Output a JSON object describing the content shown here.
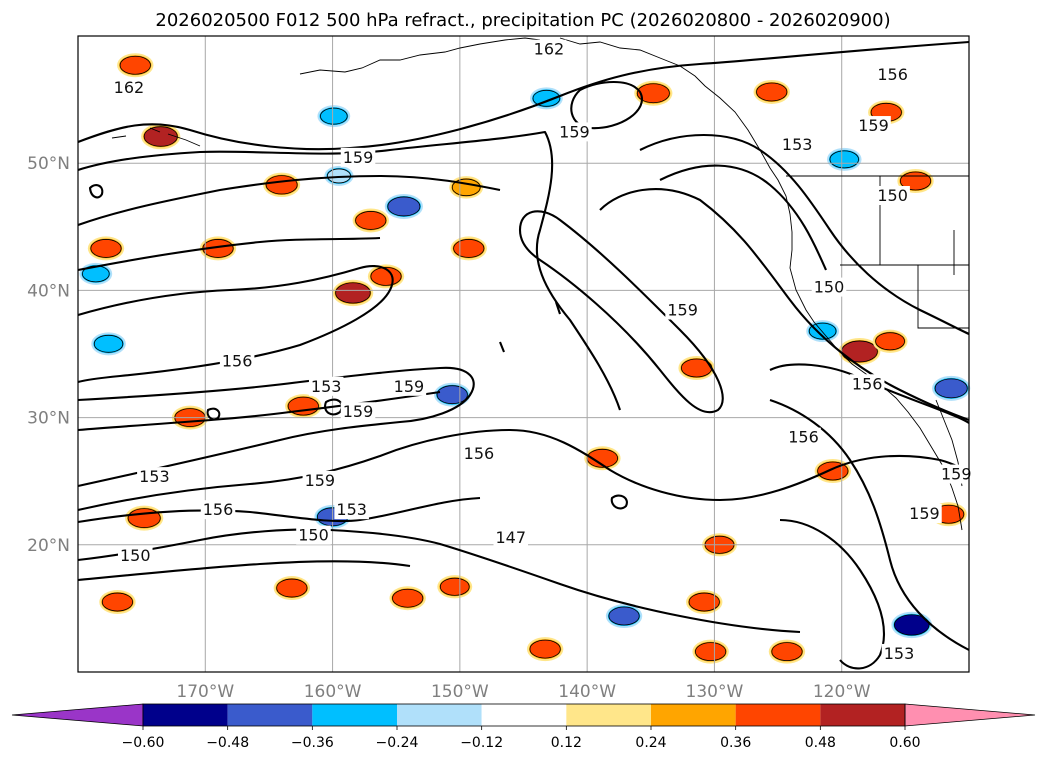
{
  "chart_data": {
    "type": "heatmap",
    "title": "2026020500 F012 500 hPa refract., precipitation PC (2026020800 - 2026020900)",
    "lat_ticks": [
      {
        "value": 50,
        "label": "50°N"
      },
      {
        "value": 40,
        "label": "40°N"
      },
      {
        "value": 30,
        "label": "30°N"
      },
      {
        "value": 20,
        "label": "20°N"
      }
    ],
    "lon_ticks": [
      {
        "value": -170,
        "label": "170°W"
      },
      {
        "value": -160,
        "label": "160°W"
      },
      {
        "value": -150,
        "label": "150°W"
      },
      {
        "value": -140,
        "label": "140°W"
      },
      {
        "value": -130,
        "label": "130°W"
      },
      {
        "value": -120,
        "label": "120°W"
      }
    ],
    "lon_range": [
      -180,
      -110
    ],
    "lat_range": [
      10,
      60
    ],
    "grid": true,
    "colorbar": {
      "extend": "both",
      "levels": [
        -0.6,
        -0.48,
        -0.36,
        -0.24,
        -0.12,
        0.12,
        0.24,
        0.36,
        0.48,
        0.6
      ],
      "tick_labels": [
        "−0.60",
        "−0.48",
        "−0.36",
        "−0.24",
        "−0.12",
        "0.12",
        "0.24",
        "0.36",
        "0.48",
        "0.60"
      ],
      "colors": [
        "#9a35c8",
        "#00008b",
        "#3a5bcc",
        "#00bfff",
        "#b0e0fa",
        "#ffffff",
        "#ffe68a",
        "#ffa500",
        "#ff4500",
        "#b22222",
        "#ff8fb0"
      ]
    },
    "contour_labels": [
      {
        "text": "162",
        "lon": -143,
        "lat": 59
      },
      {
        "text": "162",
        "lon": -176,
        "lat": 56
      },
      {
        "text": "156",
        "lon": -116,
        "lat": 57
      },
      {
        "text": "159",
        "lon": -141,
        "lat": 52.5
      },
      {
        "text": "159",
        "lon": -117.5,
        "lat": 53
      },
      {
        "text": "153",
        "lon": -123.5,
        "lat": 51.5
      },
      {
        "text": "159",
        "lon": -158,
        "lat": 50.5
      },
      {
        "text": "150",
        "lon": -116,
        "lat": 47.5
      },
      {
        "text": "150",
        "lon": -121,
        "lat": 40.3
      },
      {
        "text": "159",
        "lon": -132.5,
        "lat": 38.5
      },
      {
        "text": "156",
        "lon": -167.5,
        "lat": 34.5
      },
      {
        "text": "153",
        "lon": -160.5,
        "lat": 32.5
      },
      {
        "text": "159",
        "lon": -154,
        "lat": 32.5
      },
      {
        "text": "156",
        "lon": -118,
        "lat": 32.7
      },
      {
        "text": "159",
        "lon": -158,
        "lat": 30.5
      },
      {
        "text": "156",
        "lon": -123,
        "lat": 28.5
      },
      {
        "text": "156",
        "lon": -148.5,
        "lat": 27.2
      },
      {
        "text": "153",
        "lon": -174,
        "lat": 25.4
      },
      {
        "text": "159",
        "lon": -161,
        "lat": 25.1
      },
      {
        "text": "156",
        "lon": -169,
        "lat": 22.8
      },
      {
        "text": "153",
        "lon": -158.5,
        "lat": 22.8
      },
      {
        "text": "150",
        "lon": -161.5,
        "lat": 20.8
      },
      {
        "text": "147",
        "lon": -146,
        "lat": 20.6
      },
      {
        "text": "150",
        "lon": -175.5,
        "lat": 19.2
      },
      {
        "text": "159",
        "lon": -113.5,
        "lat": 22.5
      },
      {
        "text": "159",
        "lon": -111,
        "lat": 25.6
      },
      {
        "text": "153",
        "lon": -115.5,
        "lat": 11.5
      }
    ],
    "precip_blobs": [
      {
        "lon": -175.5,
        "lat": 57.7,
        "value": 0.4
      },
      {
        "lon": -173.5,
        "lat": 52.1,
        "value": 0.48
      },
      {
        "lon": -177.8,
        "lat": 43.3,
        "value": 0.4
      },
      {
        "lon": -178.6,
        "lat": 41.3,
        "value": -0.3
      },
      {
        "lon": -177.6,
        "lat": 35.8,
        "value": -0.35
      },
      {
        "lon": -164,
        "lat": 48.3,
        "value": 0.42
      },
      {
        "lon": -169.0,
        "lat": 43.3,
        "value": 0.4
      },
      {
        "lon": -159.5,
        "lat": 49.0,
        "value": -0.2
      },
      {
        "lon": -159.9,
        "lat": 53.7,
        "value": -0.3
      },
      {
        "lon": -157.0,
        "lat": 45.5,
        "value": 0.4
      },
      {
        "lon": -158.4,
        "lat": 39.8,
        "value": 0.52
      },
      {
        "lon": -155.8,
        "lat": 41.1,
        "value": 0.4
      },
      {
        "lon": -154.4,
        "lat": 46.6,
        "value": -0.45
      },
      {
        "lon": -149.5,
        "lat": 48.1,
        "value": 0.33
      },
      {
        "lon": -149.3,
        "lat": 43.3,
        "value": 0.4
      },
      {
        "lon": -143.2,
        "lat": 55.1,
        "value": -0.3
      },
      {
        "lon": -134.8,
        "lat": 55.5,
        "value": 0.45
      },
      {
        "lon": -125.5,
        "lat": 55.6,
        "value": 0.4
      },
      {
        "lon": -116.5,
        "lat": 54.0,
        "value": 0.4
      },
      {
        "lon": -119.8,
        "lat": 50.3,
        "value": -0.35
      },
      {
        "lon": -114.2,
        "lat": 48.6,
        "value": 0.4
      },
      {
        "lon": -121.5,
        "lat": 36.8,
        "value": -0.3
      },
      {
        "lon": -118.6,
        "lat": 35.2,
        "value": 0.55
      },
      {
        "lon": -116.2,
        "lat": 36.0,
        "value": 0.36
      },
      {
        "lon": -150.6,
        "lat": 31.8,
        "value": -0.4
      },
      {
        "lon": -171.2,
        "lat": 30.0,
        "value": 0.4
      },
      {
        "lon": -162.3,
        "lat": 30.9,
        "value": 0.4
      },
      {
        "lon": -174.8,
        "lat": 22.1,
        "value": 0.45
      },
      {
        "lon": -176.9,
        "lat": 15.5,
        "value": 0.4
      },
      {
        "lon": -160.0,
        "lat": 22.2,
        "value": -0.4
      },
      {
        "lon": -163.2,
        "lat": 16.6,
        "value": 0.4
      },
      {
        "lon": -154.1,
        "lat": 15.8,
        "value": 0.4
      },
      {
        "lon": -150.4,
        "lat": 16.7,
        "value": 0.36
      },
      {
        "lon": -137.1,
        "lat": 14.4,
        "value": -0.4
      },
      {
        "lon": -130.8,
        "lat": 15.5,
        "value": 0.4
      },
      {
        "lon": -114.5,
        "lat": 13.7,
        "value": -0.52
      },
      {
        "lon": -130.3,
        "lat": 11.6,
        "value": 0.4
      },
      {
        "lon": -124.3,
        "lat": 11.6,
        "value": 0.4
      },
      {
        "lon": -111.4,
        "lat": 32.3,
        "value": -0.45
      },
      {
        "lon": -120.7,
        "lat": 25.8,
        "value": 0.4
      },
      {
        "lon": -129.6,
        "lat": 20.0,
        "value": 0.36
      },
      {
        "lon": -131.4,
        "lat": 33.9,
        "value": 0.4
      },
      {
        "lon": -138.8,
        "lat": 26.8,
        "value": 0.4
      },
      {
        "lon": -111.6,
        "lat": 22.4,
        "value": 0.4
      },
      {
        "lon": -143.3,
        "lat": 11.8,
        "value": 0.4
      }
    ]
  }
}
